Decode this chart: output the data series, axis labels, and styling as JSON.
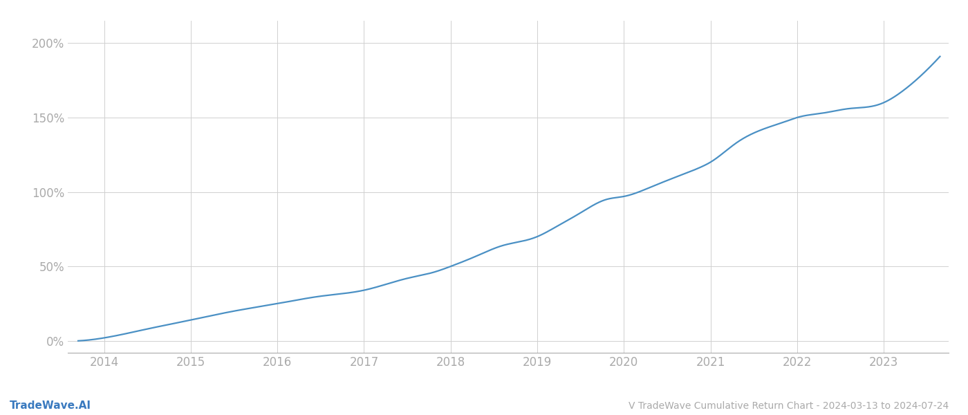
{
  "title": "V TradeWave Cumulative Return Chart - 2024-03-13 to 2024-07-24",
  "watermark": "TradeWave.AI",
  "line_color": "#4a90c4",
  "background_color": "#ffffff",
  "grid_color": "#d0d0d0",
  "axis_color": "#aaaaaa",
  "tick_label_color": "#aaaaaa",
  "title_color": "#aaaaaa",
  "watermark_color": "#3a7abf",
  "x_years": [
    2014,
    2015,
    2016,
    2017,
    2018,
    2019,
    2020,
    2021,
    2022,
    2023
  ],
  "y_ticks": [
    0,
    50,
    100,
    150,
    200
  ],
  "xlim_start": 2013.58,
  "xlim_end": 2023.75,
  "ylim_bottom": -8,
  "ylim_top": 215,
  "line_width": 1.6,
  "figsize": [
    14.0,
    6.0
  ],
  "dpi": 100,
  "key_x": [
    2013.7,
    2014.0,
    2014.5,
    2015.0,
    2015.5,
    2016.0,
    2016.5,
    2017.0,
    2017.5,
    2017.8,
    2018.0,
    2018.3,
    2018.6,
    2018.9,
    2019.0,
    2019.2,
    2019.5,
    2019.8,
    2020.0,
    2020.3,
    2020.6,
    2020.9,
    2021.0,
    2021.3,
    2021.6,
    2021.9,
    2022.0,
    2022.3,
    2022.6,
    2022.9,
    2023.0,
    2023.2,
    2023.5,
    2023.65
  ],
  "key_y": [
    0,
    2,
    8,
    14,
    20,
    25,
    30,
    34,
    42,
    46,
    50,
    57,
    64,
    68,
    70,
    76,
    86,
    95,
    97,
    103,
    110,
    117,
    120,
    133,
    142,
    148,
    150,
    153,
    156,
    158,
    160,
    167,
    182,
    191
  ]
}
